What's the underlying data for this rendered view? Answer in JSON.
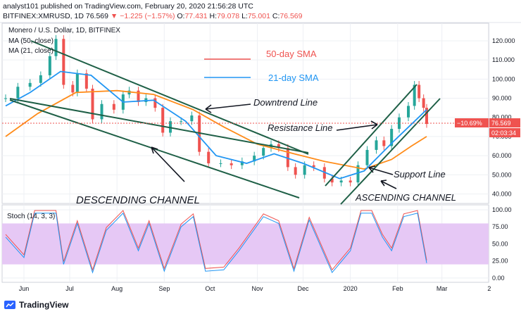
{
  "header": {
    "line1": "analyst101 published on TradingView.com, February 20, 2020 21:56:28 UTC",
    "symbol": "BITFINEX:XMRUSD, 1D",
    "price": "76.569",
    "change": "▼ −1.225 (−1.57%)",
    "o_label": "O:",
    "o": "77.431",
    "h_label": "H:",
    "h": "79.078",
    "l_label": "L:",
    "l": "75.001",
    "c_label": "C:",
    "c": "76.569"
  },
  "pane": {
    "title": "Monero / U.S. Dollar, 1D, BITFINEX",
    "ma50": "MA (50, close)",
    "ma21": "MA (21, close)",
    "stoch": "Stoch (14, 3, 3)"
  },
  "price_tag": "76.569",
  "pct_tag": "−10.69%",
  "countdown": "02:03:34",
  "annotations": {
    "legend_50": "50-day SMA",
    "legend_21": "21-day SMA",
    "downtrend": "Downtrend Line",
    "resistance": "Resistance Line",
    "support": "Support Line",
    "descending": "DESCENDING CHANNEL",
    "ascending": "ASCENDING CHANNEL"
  },
  "footer": {
    "brand": "TradingView"
  },
  "colors": {
    "up": "#26a69a",
    "down": "#ef5350",
    "ma50": "#ff8c1a",
    "ma21": "#2196f3",
    "channel": "#1e5f46",
    "stoch_k": "#2196f3",
    "stoch_d": "#ef5350",
    "stoch_band": "#e6c8f5"
  },
  "chart_data": [
    {
      "type": "candlestick",
      "title": "Monero / U.S. Dollar, 1D, BITFINEX",
      "ylim": [
        35,
        125
      ],
      "y_ticks": [
        "120.000",
        "110.000",
        "100.000",
        "90.000",
        "80.000",
        "70.000",
        "60.000",
        "50.000",
        "40.000"
      ],
      "x_ticks": [
        "Jun",
        "Jul",
        "Aug",
        "Sep",
        "Oct",
        "Nov",
        "Dec",
        "2020",
        "Feb",
        "Mar",
        "2"
      ],
      "close_series": [
        {
          "date": "2019-05-20",
          "close": 90
        },
        {
          "date": "2019-05-28",
          "close": 96
        },
        {
          "date": "2019-06-05",
          "close": 98
        },
        {
          "date": "2019-06-12",
          "close": 102
        },
        {
          "date": "2019-06-18",
          "close": 112
        },
        {
          "date": "2019-06-22",
          "close": 121
        },
        {
          "date": "2019-06-27",
          "close": 97
        },
        {
          "date": "2019-07-03",
          "close": 93
        },
        {
          "date": "2019-07-06",
          "close": 103
        },
        {
          "date": "2019-07-12",
          "close": 95
        },
        {
          "date": "2019-07-16",
          "close": 79
        },
        {
          "date": "2019-07-22",
          "close": 87
        },
        {
          "date": "2019-07-30",
          "close": 84
        },
        {
          "date": "2019-08-05",
          "close": 92
        },
        {
          "date": "2019-08-09",
          "close": 94
        },
        {
          "date": "2019-08-15",
          "close": 88
        },
        {
          "date": "2019-08-20",
          "close": 90
        },
        {
          "date": "2019-08-26",
          "close": 85
        },
        {
          "date": "2019-08-31",
          "close": 72
        },
        {
          "date": "2019-09-05",
          "close": 78
        },
        {
          "date": "2019-09-12",
          "close": 78
        },
        {
          "date": "2019-09-19",
          "close": 81
        },
        {
          "date": "2019-09-24",
          "close": 62
        },
        {
          "date": "2019-09-30",
          "close": 56
        },
        {
          "date": "2019-10-08",
          "close": 56
        },
        {
          "date": "2019-10-15",
          "close": 55
        },
        {
          "date": "2019-10-22",
          "close": 57
        },
        {
          "date": "2019-10-30",
          "close": 60
        },
        {
          "date": "2019-11-05",
          "close": 64
        },
        {
          "date": "2019-11-10",
          "close": 66
        },
        {
          "date": "2019-11-15",
          "close": 64
        },
        {
          "date": "2019-11-21",
          "close": 54
        },
        {
          "date": "2019-11-26",
          "close": 50
        },
        {
          "date": "2019-12-02",
          "close": 55
        },
        {
          "date": "2019-12-08",
          "close": 54
        },
        {
          "date": "2019-12-15",
          "close": 48
        },
        {
          "date": "2019-12-20",
          "close": 46
        },
        {
          "date": "2019-12-26",
          "close": 47
        },
        {
          "date": "2020-01-01",
          "close": 46
        },
        {
          "date": "2020-01-06",
          "close": 55
        },
        {
          "date": "2020-01-12",
          "close": 63
        },
        {
          "date": "2020-01-18",
          "close": 68
        },
        {
          "date": "2020-01-23",
          "close": 65
        },
        {
          "date": "2020-01-28",
          "close": 74
        },
        {
          "date": "2020-02-02",
          "close": 80
        },
        {
          "date": "2020-02-08",
          "close": 86
        },
        {
          "date": "2020-02-12",
          "close": 97
        },
        {
          "date": "2020-02-15",
          "close": 90
        },
        {
          "date": "2020-02-18",
          "close": 85
        },
        {
          "date": "2020-02-20",
          "close": 76.569
        }
      ],
      "ma50_series": [
        {
          "date": "2019-05-20",
          "value": 70
        },
        {
          "date": "2019-06-10",
          "value": 82
        },
        {
          "date": "2019-07-05",
          "value": 93
        },
        {
          "date": "2019-08-01",
          "value": 94
        },
        {
          "date": "2019-08-25",
          "value": 92
        },
        {
          "date": "2019-09-20",
          "value": 84
        },
        {
          "date": "2019-10-10",
          "value": 75
        },
        {
          "date": "2019-11-01",
          "value": 66
        },
        {
          "date": "2019-11-25",
          "value": 61
        },
        {
          "date": "2019-12-15",
          "value": 57
        },
        {
          "date": "2020-01-10",
          "value": 53
        },
        {
          "date": "2020-01-28",
          "value": 58
        },
        {
          "date": "2020-02-10",
          "value": 65
        },
        {
          "date": "2020-02-20",
          "value": 70
        }
      ],
      "ma21_series": [
        {
          "date": "2019-05-20",
          "value": 86
        },
        {
          "date": "2019-06-05",
          "value": 93
        },
        {
          "date": "2019-06-25",
          "value": 104
        },
        {
          "date": "2019-07-15",
          "value": 102
        },
        {
          "date": "2019-08-05",
          "value": 88
        },
        {
          "date": "2019-08-25",
          "value": 89
        },
        {
          "date": "2019-09-15",
          "value": 78
        },
        {
          "date": "2019-10-05",
          "value": 60
        },
        {
          "date": "2019-10-25",
          "value": 56
        },
        {
          "date": "2019-11-12",
          "value": 61
        },
        {
          "date": "2019-12-01",
          "value": 56
        },
        {
          "date": "2019-12-25",
          "value": 48
        },
        {
          "date": "2020-01-10",
          "value": 52
        },
        {
          "date": "2020-01-30",
          "value": 68
        },
        {
          "date": "2020-02-20",
          "value": 84
        }
      ],
      "last_price": 76.569
    },
    {
      "type": "line",
      "title": "Stoch (14, 3, 3)",
      "ylim": [
        0,
        100
      ],
      "y_ticks": [
        "100.00",
        "75.00",
        "50.00",
        "25.00",
        "0.00"
      ],
      "band": [
        20,
        80
      ],
      "k_series": [
        {
          "date": "2019-05-20",
          "value": 60
        },
        {
          "date": "2019-06-01",
          "value": 30
        },
        {
          "date": "2019-06-08",
          "value": 95
        },
        {
          "date": "2019-06-22",
          "value": 95
        },
        {
          "date": "2019-06-27",
          "value": 20
        },
        {
          "date": "2019-07-06",
          "value": 80
        },
        {
          "date": "2019-07-16",
          "value": 8
        },
        {
          "date": "2019-07-25",
          "value": 70
        },
        {
          "date": "2019-08-05",
          "value": 95
        },
        {
          "date": "2019-08-15",
          "value": 40
        },
        {
          "date": "2019-08-22",
          "value": 80
        },
        {
          "date": "2019-09-01",
          "value": 10
        },
        {
          "date": "2019-09-12",
          "value": 75
        },
        {
          "date": "2019-09-20",
          "value": 90
        },
        {
          "date": "2019-09-28",
          "value": 10
        },
        {
          "date": "2019-10-10",
          "value": 12
        },
        {
          "date": "2019-10-20",
          "value": 40
        },
        {
          "date": "2019-11-05",
          "value": 90
        },
        {
          "date": "2019-11-15",
          "value": 80
        },
        {
          "date": "2019-11-25",
          "value": 10
        },
        {
          "date": "2019-12-05",
          "value": 85
        },
        {
          "date": "2019-12-20",
          "value": 8
        },
        {
          "date": "2020-01-01",
          "value": 40
        },
        {
          "date": "2020-01-08",
          "value": 95
        },
        {
          "date": "2020-01-15",
          "value": 95
        },
        {
          "date": "2020-01-22",
          "value": 60
        },
        {
          "date": "2020-01-28",
          "value": 40
        },
        {
          "date": "2020-02-05",
          "value": 90
        },
        {
          "date": "2020-02-14",
          "value": 95
        },
        {
          "date": "2020-02-20",
          "value": 22
        }
      ]
    }
  ]
}
